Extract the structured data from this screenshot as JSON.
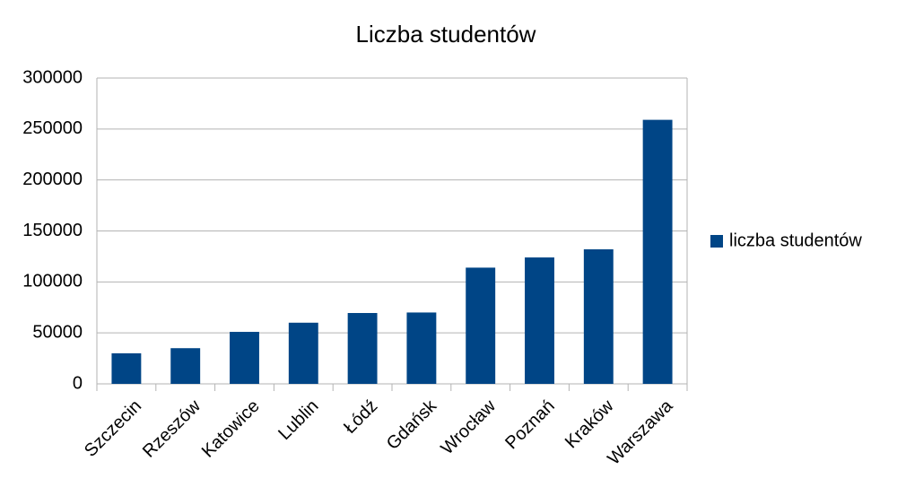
{
  "chart_data": {
    "type": "bar",
    "title": "Liczba studentów",
    "categories": [
      "Szczecin",
      "Rzeszów",
      "Katowice",
      "Lublin",
      "Łódź",
      "Gdańsk",
      "Wrocław",
      "Poznań",
      "Kraków",
      "Warszawa"
    ],
    "series": [
      {
        "name": "liczba studentów",
        "color": "#004586",
        "values": [
          30000,
          35000,
          51000,
          60000,
          69500,
          70000,
          114000,
          124000,
          132000,
          259000
        ]
      }
    ],
    "ylim": [
      0,
      300000
    ],
    "yticks": [
      0,
      50000,
      100000,
      150000,
      200000,
      250000,
      300000
    ],
    "grid": true
  }
}
